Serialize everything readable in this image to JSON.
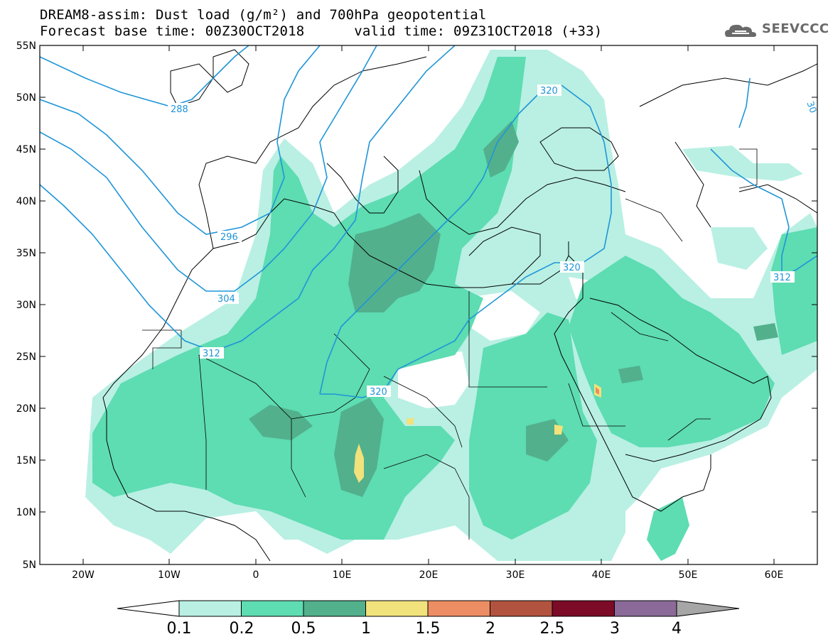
{
  "header": {
    "title_line1": "DREAM8-assim: Dust load (g/m²) and 700hPa geopotential",
    "title_line2": "Forecast base time: 00Z30OCT2018      valid time: 09Z31OCT2018 (+33)",
    "logo_text": "SEEVCCC"
  },
  "map": {
    "lon_range": [
      -25,
      65
    ],
    "lat_range": [
      5,
      55
    ],
    "lat_labels": [
      "55N",
      "50N",
      "45N",
      "40N",
      "35N",
      "30N",
      "25N",
      "20N",
      "15N",
      "10N",
      "5N"
    ],
    "lon_labels": [
      "20W",
      "10W",
      "0",
      "10E",
      "20E",
      "30E",
      "40E",
      "50E",
      "60E"
    ],
    "dust_colors": {
      "0.1": "#b9f0e3",
      "0.2": "#5edcb2",
      "0.5": "#52b08d",
      "1": "#f1e27b",
      "1.5": "#ec8d63",
      "2": "#b2533f",
      "2.5": "#7b0b26",
      "3": "#8b6a99",
      "4": "#a6a6a6"
    },
    "contour_color": "#1f95d8",
    "contour_labels": [
      "288",
      "296",
      "304",
      "312",
      "320",
      "320",
      "320",
      "312",
      "30"
    ]
  },
  "colorbar": {
    "labels": [
      "0.1",
      "0.2",
      "0.5",
      "1",
      "1.5",
      "2",
      "2.5",
      "3",
      "4"
    ],
    "colors": [
      "#b9f0e3",
      "#5edcb2",
      "#52b08d",
      "#f1e27b",
      "#ec8d63",
      "#b2533f",
      "#7b0b26",
      "#8b6a99"
    ]
  }
}
